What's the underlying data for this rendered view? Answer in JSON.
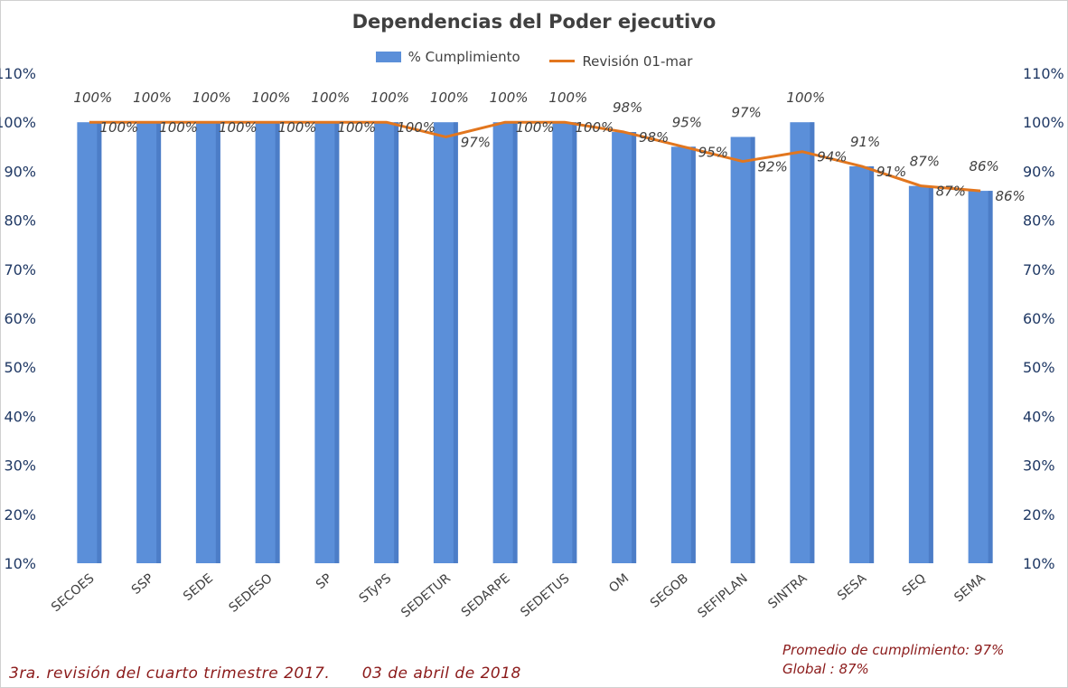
{
  "chart_data": {
    "type": "bar",
    "title": "Dependencias del Poder ejecutivo",
    "categories": [
      "SECOES",
      "SSP",
      "SEDE",
      "SEDESO",
      "SP",
      "STyPS",
      "SEDETUR",
      "SEDARPE",
      "SEDETUS",
      "OM",
      "SEGOB",
      "SEFIPLAN",
      "SINTRA",
      "SESA",
      "SEQ",
      "SEMA"
    ],
    "series": [
      {
        "name": "% Cumplimiento",
        "type": "bar",
        "color": "#5b8fd9",
        "values": [
          100,
          100,
          100,
          100,
          100,
          100,
          100,
          100,
          100,
          98,
          95,
          97,
          100,
          91,
          87,
          86
        ],
        "labels": [
          "100%",
          "100%",
          "100%",
          "100%",
          "100%",
          "100%",
          "100%",
          "100%",
          "100%",
          "98%",
          "95%",
          "97%",
          "100%",
          "91%",
          "87%",
          "86%"
        ]
      },
      {
        "name": "Revisión  01-mar",
        "type": "line",
        "color": "#e2761e",
        "values": [
          100,
          100,
          100,
          100,
          100,
          100,
          97,
          100,
          100,
          98,
          95,
          92,
          94,
          91,
          87,
          86
        ],
        "labels": [
          "100%",
          "100%",
          "100%",
          "100%",
          "100%",
          "100%",
          "97%",
          "100%",
          "100%",
          "98%",
          "95%",
          "92%",
          "94%",
          "91%",
          "87%",
          "86%"
        ]
      }
    ],
    "ylim": [
      10,
      110
    ],
    "yticks": [
      "10%",
      "20%",
      "30%",
      "40%",
      "50%",
      "60%",
      "70%",
      "80%",
      "90%",
      "100%",
      "110%"
    ],
    "secondary_axis": true,
    "grid": false,
    "legend": "top-center"
  },
  "footnote": {
    "revision": "3ra. revisión del cuarto trimestre 2017.",
    "date": "03 de abril de 2018"
  },
  "summary": {
    "average": "Promedio de cumplimiento: 97%",
    "global": "Global : 87%"
  }
}
